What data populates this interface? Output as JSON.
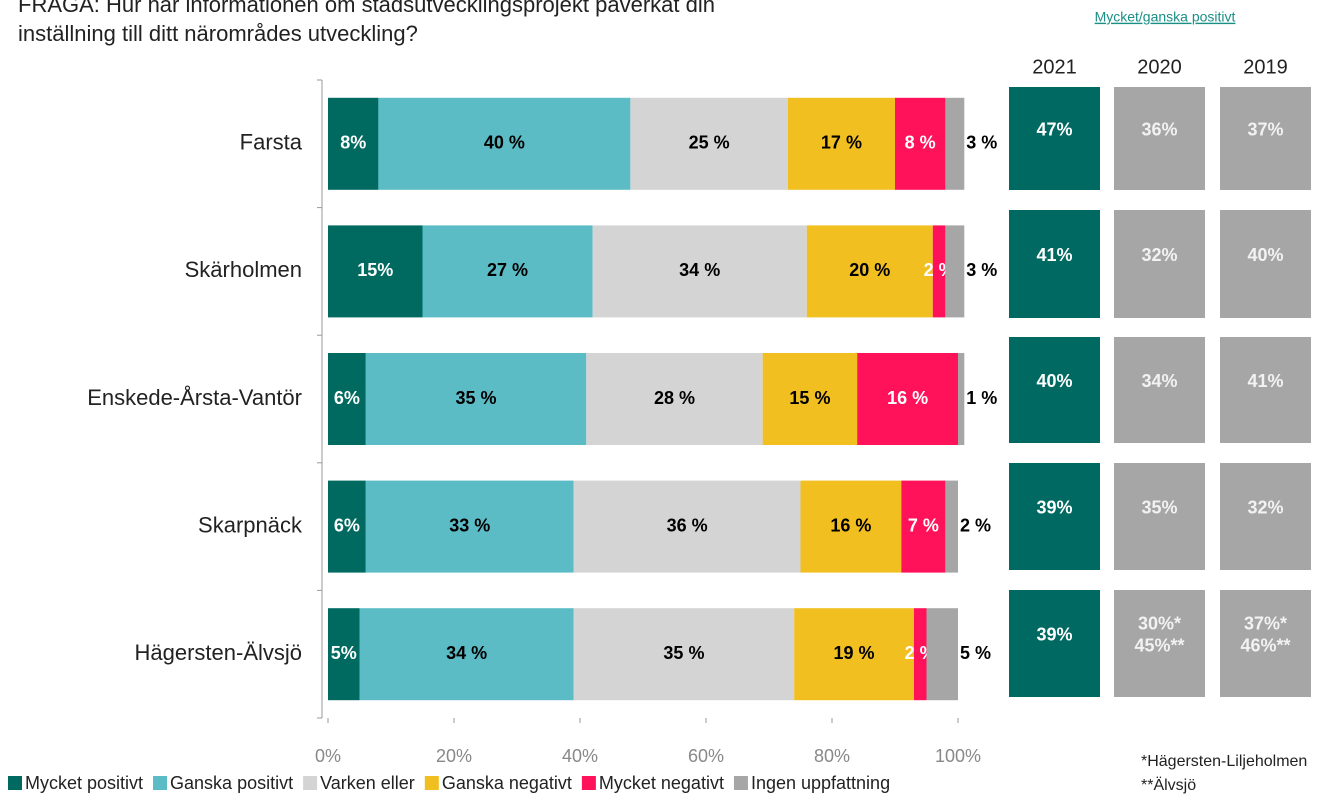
{
  "chart_data": {
    "type": "stacked_barh",
    "title": [
      "FRÅGA: Hur har informationen om stadsutvecklingsprojekt påverkat din",
      "inställning till ditt närområdes utveckling?"
    ],
    "categories": [
      "Farsta",
      "Skärholmen",
      "Enskede-Årsta-Vantör",
      "Skarpnäck",
      "Hägersten-Älvsjö"
    ],
    "series": [
      {
        "name": "Mycket positivt",
        "color": "#006a60",
        "values": [
          8,
          15,
          6,
          6,
          5
        ],
        "value_labels": [
          "8%",
          "15%",
          "6%",
          "6%",
          "5%"
        ]
      },
      {
        "name": "Ganska positivt",
        "color": "#5bbcc6",
        "values": [
          40,
          27,
          35,
          33,
          34
        ],
        "value_labels": [
          "40 %",
          "27 %",
          "35 %",
          "33 %",
          "34 %"
        ]
      },
      {
        "name": "Varken eller",
        "color": "#d4d4d4",
        "values": [
          25,
          34,
          28,
          36,
          35
        ],
        "value_labels": [
          "25 %",
          "34 %",
          "28 %",
          "36 %",
          "35 %"
        ]
      },
      {
        "name": "Ganska negativt",
        "color": "#f2bf21",
        "values": [
          17,
          20,
          15,
          16,
          19
        ],
        "value_labels": [
          "17 %",
          "20 %",
          "15 %",
          "16 %",
          "19 %"
        ]
      },
      {
        "name": "Mycket negativt",
        "color": "#ff1259",
        "values": [
          8,
          2,
          16,
          7,
          2
        ],
        "value_labels": [
          "8 %",
          "2 %",
          "16 %",
          "7 %",
          "2 %"
        ]
      },
      {
        "name": "Ingen uppfattning",
        "color": "#a6a6a6",
        "values": [
          3,
          3,
          1,
          2,
          5
        ],
        "value_labels": [
          "3 %",
          "3 %",
          "1 %",
          "2 %",
          "5 %"
        ]
      }
    ],
    "xlim": [
      0,
      100
    ],
    "xticks": [
      {
        "value": 0,
        "label": "0%"
      },
      {
        "value": 20,
        "label": "20%"
      },
      {
        "value": 40,
        "label": "40%"
      },
      {
        "value": 60,
        "label": "60%"
      },
      {
        "value": 80,
        "label": "80%"
      },
      {
        "value": 100,
        "label": "100%"
      }
    ],
    "legend": "bottom"
  },
  "side_table": {
    "header": "Mycket/ganska positivt",
    "columns": [
      "2021",
      "2020",
      "2019"
    ],
    "rows": [
      [
        [
          "47%"
        ],
        [
          "36%"
        ],
        [
          "37%"
        ]
      ],
      [
        [
          "41%"
        ],
        [
          "32%"
        ],
        [
          "40%"
        ]
      ],
      [
        [
          "40%"
        ],
        [
          "34%"
        ],
        [
          "41%"
        ]
      ],
      [
        [
          "39%"
        ],
        [
          "35%"
        ],
        [
          "32%"
        ]
      ],
      [
        [
          "39%"
        ],
        [
          "30%*",
          "45%**"
        ],
        [
          "37%*",
          "46%**"
        ]
      ]
    ],
    "footnotes": [
      "*Hägersten-Liljeholmen",
      "**Älvsjö"
    ]
  }
}
